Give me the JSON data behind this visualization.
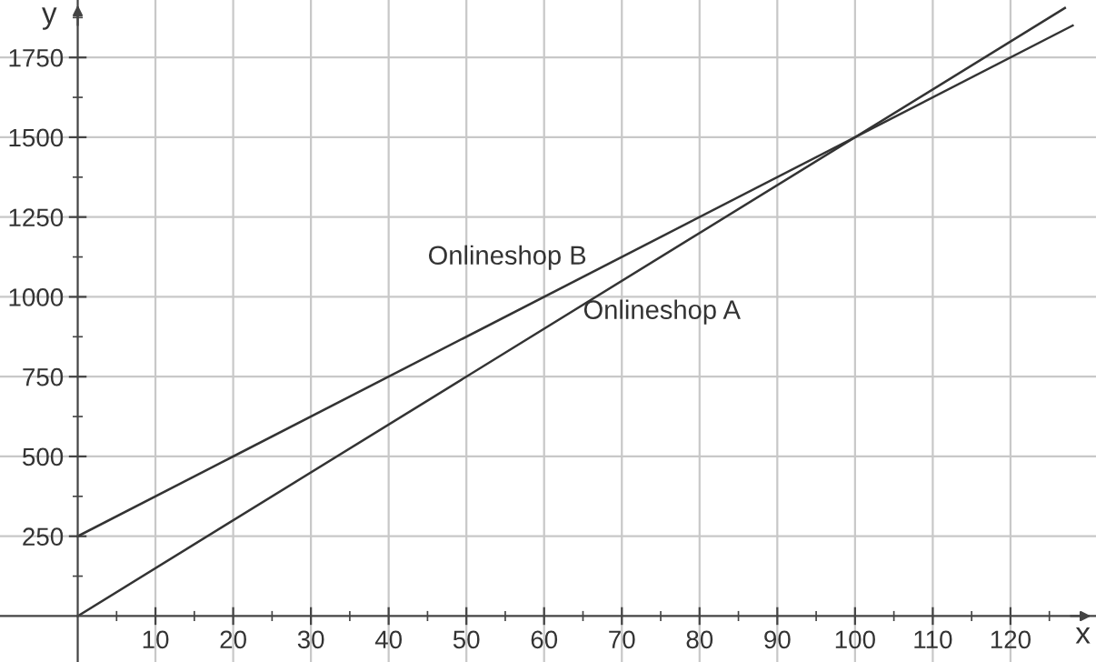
{
  "chart_data": {
    "type": "line",
    "xlabel": "x",
    "ylabel": "y",
    "series": [
      {
        "name": "Onlineshop A",
        "color": "#333333",
        "x": [
          0,
          127
        ],
        "values": [
          0,
          1905
        ]
      },
      {
        "name": "Onlineshop B",
        "color": "#333333",
        "x": [
          0,
          128
        ],
        "values": [
          250,
          1850
        ]
      }
    ],
    "xlim": [
      -10,
      131
    ],
    "ylim": [
      -144,
      1930
    ],
    "xticks": [
      {
        "value": 5,
        "label": null
      },
      10,
      {
        "value": 15,
        "label": null
      },
      20,
      {
        "value": 25,
        "label": null
      },
      30,
      {
        "value": 35,
        "label": null
      },
      40,
      {
        "value": 45,
        "label": null
      },
      50,
      {
        "value": 55,
        "label": null
      },
      60,
      {
        "value": 65,
        "label": null
      },
      70,
      {
        "value": 75,
        "label": null
      },
      80,
      {
        "value": 85,
        "label": null
      },
      90,
      {
        "value": 95,
        "label": null
      },
      100,
      {
        "value": 105,
        "label": null
      },
      110,
      {
        "value": 115,
        "label": null
      },
      120,
      {
        "value": 125,
        "label": null
      }
    ],
    "yticks": [
      {
        "value": 125,
        "label": null
      },
      250,
      {
        "value": 375,
        "label": null
      },
      500,
      {
        "value": 625,
        "label": null
      },
      750,
      {
        "value": 875,
        "label": null
      },
      1000,
      {
        "value": 1125,
        "label": null
      },
      1250,
      {
        "value": 1375,
        "label": null
      },
      1500,
      {
        "value": 1625,
        "label": null
      },
      1750,
      {
        "value": 1875,
        "label": null
      }
    ],
    "grid": true,
    "legend": false,
    "marker": "none",
    "line_style": "solid"
  }
}
